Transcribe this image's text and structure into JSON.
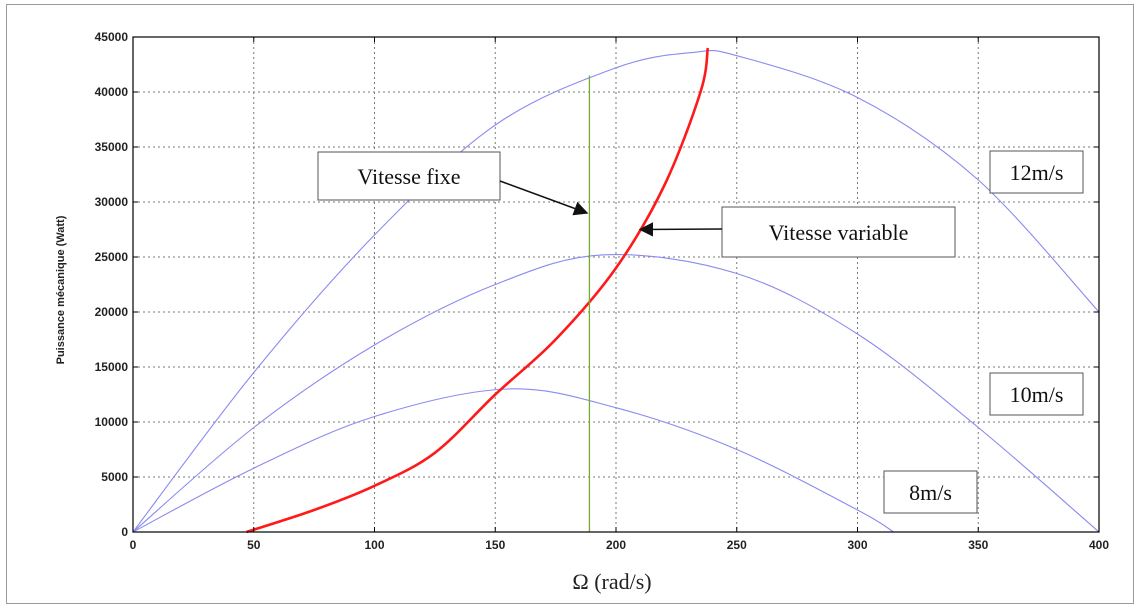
{
  "chart_data": {
    "type": "line",
    "xlabel": "Ω (rad/s)",
    "ylabel": "Puissance mécanique (Watt)",
    "xlim": [
      0,
      400
    ],
    "ylim": [
      0,
      45000
    ],
    "x_ticks": [
      "0",
      "50",
      "100",
      "150",
      "200",
      "250",
      "300",
      "350",
      "400"
    ],
    "y_ticks": [
      "0",
      "5000",
      "10000",
      "15000",
      "20000",
      "25000",
      "30000",
      "35000",
      "40000",
      "45000"
    ],
    "grid": true,
    "series": [
      {
        "name": "12m/s",
        "color": "#8a8af0",
        "points": [
          [
            0,
            0
          ],
          [
            50,
            14500
          ],
          [
            100,
            27000
          ],
          [
            150,
            37000
          ],
          [
            200,
            42200
          ],
          [
            232,
            43600
          ],
          [
            250,
            43300
          ],
          [
            300,
            39500
          ],
          [
            350,
            32000
          ],
          [
            400,
            20000
          ]
        ]
      },
      {
        "name": "10m/s",
        "color": "#8a8af0",
        "points": [
          [
            0,
            0
          ],
          [
            50,
            9500
          ],
          [
            100,
            17000
          ],
          [
            150,
            22500
          ],
          [
            195,
            25200
          ],
          [
            250,
            23500
          ],
          [
            300,
            18000
          ],
          [
            350,
            9500
          ],
          [
            400,
            0
          ]
        ]
      },
      {
        "name": "8m/s",
        "color": "#8a8af0",
        "points": [
          [
            0,
            0
          ],
          [
            50,
            5800
          ],
          [
            100,
            10500
          ],
          [
            155,
            13000
          ],
          [
            200,
            11300
          ],
          [
            250,
            7500
          ],
          [
            300,
            2000
          ],
          [
            315,
            0
          ]
        ]
      },
      {
        "name": "Vitesse variable",
        "color": "#ff1a1a",
        "points": [
          [
            47,
            0
          ],
          [
            75,
            2000
          ],
          [
            100,
            4200
          ],
          [
            125,
            7200
          ],
          [
            150,
            12500
          ],
          [
            175,
            17500
          ],
          [
            200,
            24000
          ],
          [
            220,
            31500
          ],
          [
            235,
            40000
          ],
          [
            238,
            44000
          ]
        ]
      },
      {
        "name": "Vitesse fixe",
        "color": "#77aa33",
        "points": [
          [
            189,
            0
          ],
          [
            189,
            41500
          ]
        ]
      }
    ],
    "annotations": [
      {
        "text": "Vitesse fixe",
        "arrow_to": [
          188,
          29000
        ]
      },
      {
        "text": "Vitesse variable",
        "arrow_to": [
          210,
          27500
        ]
      },
      {
        "text": "12m/s"
      },
      {
        "text": "10m/s"
      },
      {
        "text": "8m/s"
      }
    ]
  }
}
